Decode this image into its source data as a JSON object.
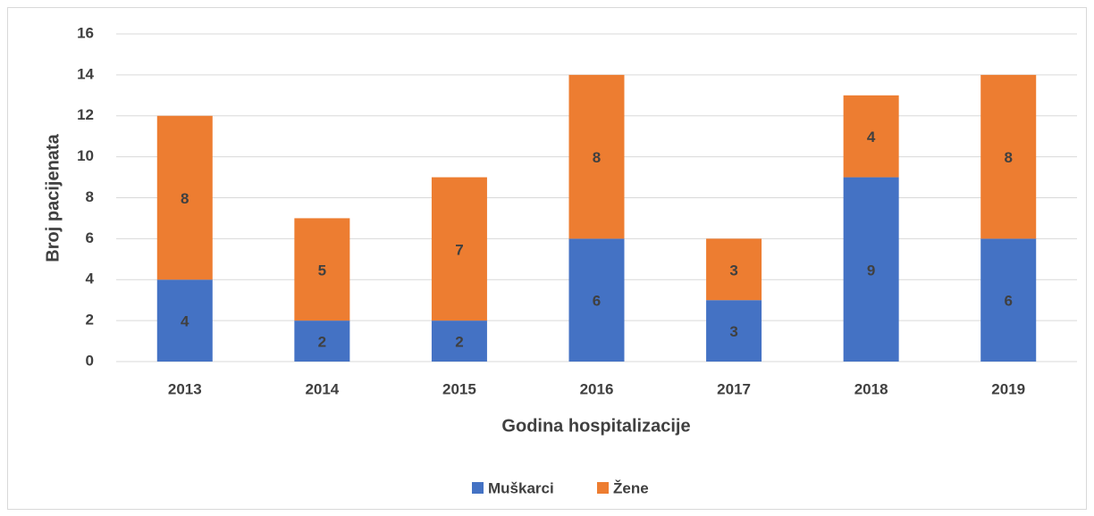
{
  "chart_data": {
    "type": "bar",
    "stacked": true,
    "x_label": "Godina hospitalizacije",
    "y_label": "Broj pacijenata",
    "categories": [
      "2013",
      "2014",
      "2015",
      "2016",
      "2017",
      "2018",
      "2019"
    ],
    "series": [
      {
        "name": "Muškarci",
        "color": "#4472c4",
        "values": [
          4,
          2,
          2,
          6,
          3,
          9,
          6
        ]
      },
      {
        "name": "Žene",
        "color": "#ed7d31",
        "values": [
          8,
          5,
          7,
          8,
          3,
          4,
          8
        ]
      }
    ],
    "ylim": [
      0,
      16
    ],
    "yticks": [
      0,
      2,
      4,
      6,
      8,
      10,
      12,
      14,
      16
    ],
    "grid": true,
    "legend": "bottom"
  }
}
